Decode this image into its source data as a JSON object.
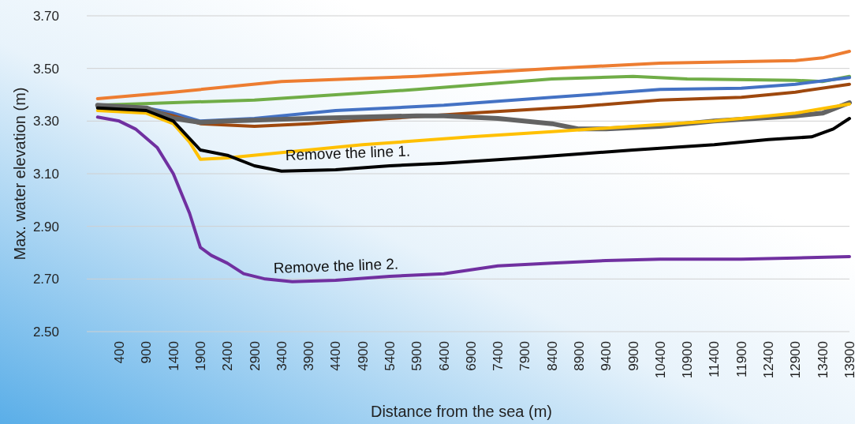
{
  "chart_data": {
    "type": "line",
    "xlabel": "Distance from the sea (m)",
    "ylabel": "Max. water elevation (m)",
    "xlim": [
      -200,
      13900
    ],
    "xticks": [
      400,
      900,
      1400,
      1900,
      2400,
      2900,
      3400,
      3900,
      4400,
      4900,
      5400,
      5900,
      6400,
      6900,
      7400,
      7900,
      8400,
      8900,
      9400,
      9900,
      10400,
      10900,
      11400,
      11900,
      12400,
      12900,
      13400,
      13900
    ],
    "ylim": [
      2.5,
      3.7
    ],
    "yticks": [
      {
        "value": 2.5,
        "label": "2.50"
      },
      {
        "value": 2.7,
        "label": "2.70"
      },
      {
        "value": 2.9,
        "label": "2.90"
      },
      {
        "value": 3.1,
        "label": "3.10"
      },
      {
        "value": 3.3,
        "label": "3.30"
      },
      {
        "value": 3.5,
        "label": "3.50"
      },
      {
        "value": 3.7,
        "label": "3.70"
      }
    ],
    "grid": "y",
    "marker": "none",
    "line_style": "solid",
    "series": [
      {
        "color": "#ed7d31",
        "x": [
          0,
          1400,
          3400,
          5900,
          8400,
          10400,
          12900,
          13400,
          13900
        ],
        "values": [
          3.385,
          3.41,
          3.45,
          3.47,
          3.5,
          3.52,
          3.53,
          3.54,
          3.565
        ]
      },
      {
        "color": "#70ad47",
        "x": [
          0,
          1400,
          2900,
          5900,
          8400,
          9900,
          10900,
          12900,
          13400,
          13900
        ],
        "values": [
          3.36,
          3.37,
          3.38,
          3.42,
          3.46,
          3.47,
          3.46,
          3.455,
          3.45,
          3.47
        ]
      },
      {
        "color": "#4472c4",
        "x": [
          0,
          900,
          1400,
          1900,
          2900,
          4400,
          6400,
          8400,
          10400,
          11900,
          12900,
          13900
        ],
        "values": [
          3.355,
          3.35,
          3.33,
          3.3,
          3.31,
          3.34,
          3.36,
          3.39,
          3.42,
          3.425,
          3.44,
          3.465
        ]
      },
      {
        "color": "#9e480e",
        "x": [
          0,
          900,
          1400,
          1900,
          2900,
          3900,
          5400,
          6900,
          8900,
          10400,
          11900,
          12900,
          13900
        ],
        "values": [
          3.355,
          3.345,
          3.32,
          3.29,
          3.28,
          3.29,
          3.31,
          3.33,
          3.355,
          3.38,
          3.39,
          3.41,
          3.44
        ]
      },
      {
        "color": "#636363",
        "x": [
          0,
          900,
          1400,
          1900,
          2400,
          3900,
          5900,
          6400,
          7400,
          8400,
          8900,
          9400,
          10400,
          11400,
          12900,
          13400,
          13900
        ],
        "values": [
          3.36,
          3.35,
          3.31,
          3.295,
          3.3,
          3.31,
          3.32,
          3.32,
          3.31,
          3.29,
          3.27,
          3.27,
          3.28,
          3.3,
          3.32,
          3.33,
          3.37
        ]
      },
      {
        "color": "#ffc000",
        "x": [
          0,
          900,
          1400,
          1700,
          1900,
          2400,
          3400,
          4900,
          6900,
          8400,
          9900,
          11400,
          12400,
          12900,
          13900
        ],
        "values": [
          3.34,
          3.33,
          3.29,
          3.22,
          3.155,
          3.16,
          3.18,
          3.21,
          3.24,
          3.26,
          3.28,
          3.3,
          3.32,
          3.33,
          3.365
        ]
      },
      {
        "color": "#000000",
        "x": [
          0,
          900,
          1400,
          1900,
          2400,
          2900,
          3400,
          4400,
          5400,
          6400,
          7900,
          8900,
          9900,
          11400,
          12400,
          13200,
          13600,
          13900
        ],
        "values": [
          3.35,
          3.34,
          3.3,
          3.19,
          3.17,
          3.13,
          3.11,
          3.115,
          3.13,
          3.14,
          3.16,
          3.175,
          3.19,
          3.21,
          3.23,
          3.24,
          3.27,
          3.31
        ]
      },
      {
        "color": "#7030a0",
        "x": [
          0,
          400,
          700,
          1100,
          1400,
          1700,
          1900,
          2100,
          2400,
          2700,
          3100,
          3600,
          4400,
          5400,
          6400,
          7400,
          8400,
          9400,
          10400,
          11900,
          12900,
          13900
        ],
        "values": [
          3.315,
          3.3,
          3.27,
          3.2,
          3.1,
          2.95,
          2.82,
          2.79,
          2.76,
          2.72,
          2.7,
          2.69,
          2.695,
          2.71,
          2.72,
          2.75,
          2.76,
          2.77,
          2.775,
          2.775,
          2.78,
          2.785
        ]
      }
    ],
    "annotations": [
      "Remove the line 1.",
      "Remove the line 2."
    ]
  }
}
